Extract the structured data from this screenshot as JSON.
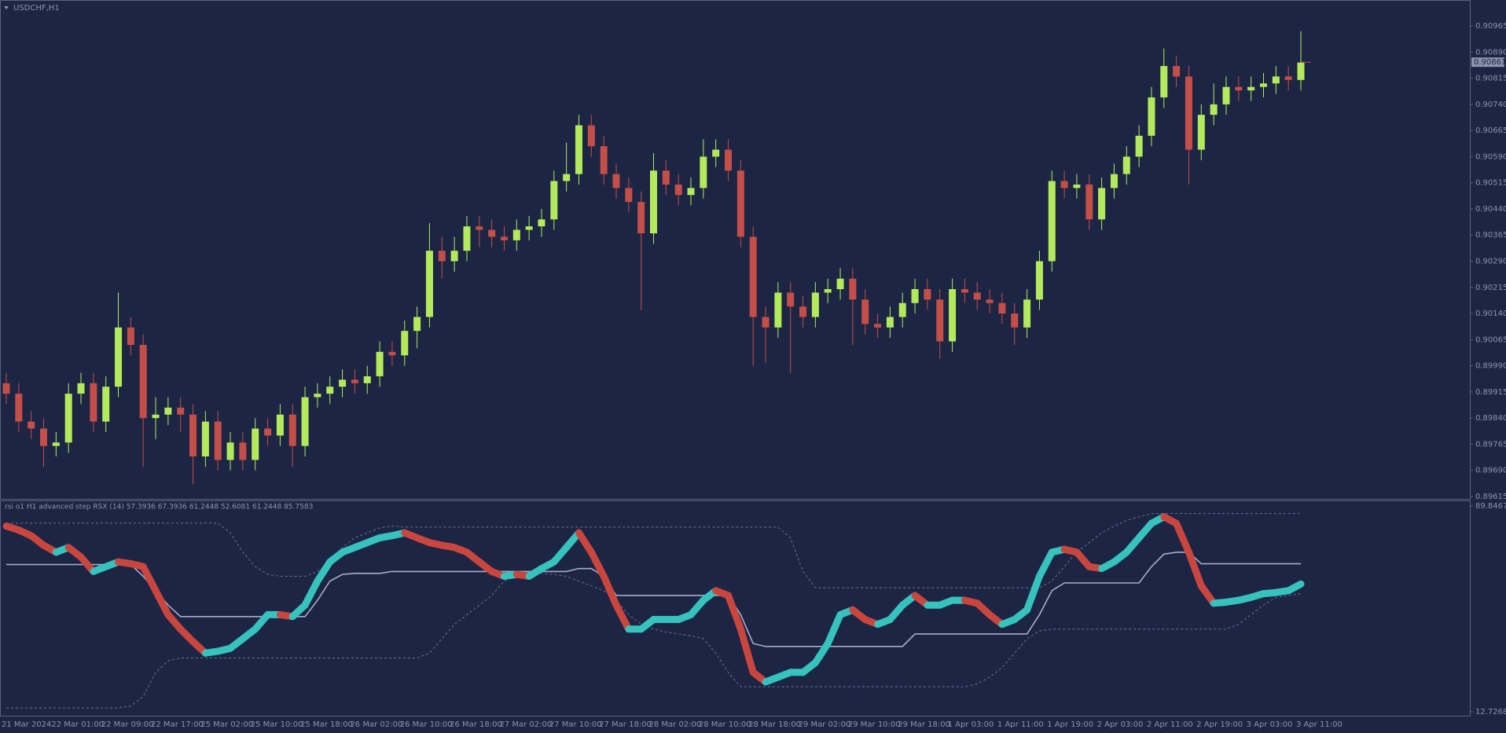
{
  "chart_data": [
    {
      "type": "candlestick",
      "title": "USDCHF,H1",
      "up_color": "#b3ea5c",
      "down_color": "#c44e48",
      "categories": [
        "21 Mar 2024",
        null,
        null,
        null,
        "22 Mar 01:00",
        null,
        null,
        null,
        "22 Mar 09:00",
        null,
        null,
        null,
        "22 Mar 17:00",
        null,
        null,
        null,
        "25 Mar 02:00",
        null,
        null,
        null,
        "25 Mar 10:00",
        null,
        null,
        null,
        "25 Mar 18:00",
        null,
        null,
        null,
        "26 Mar 02:00",
        null,
        null,
        null,
        "26 Mar 10:00",
        null,
        null,
        null,
        "26 Mar 18:00",
        null,
        null,
        null,
        "27 Mar 02:00",
        null,
        null,
        null,
        "27 Mar 10:00",
        null,
        null,
        null,
        "27 Mar 18:00",
        null,
        null,
        null,
        "28 Mar 02:00",
        null,
        null,
        null,
        "28 Mar 10:00",
        null,
        null,
        null,
        "28 Mar 18:00",
        null,
        null,
        null,
        "29 Mar 02:00",
        null,
        null,
        null,
        "29 Mar 10:00",
        null,
        null,
        null,
        "29 Mar 18:00",
        null,
        null,
        null,
        "1 Apr 03:00",
        null,
        null,
        null,
        "1 Apr 11:00",
        null,
        null,
        null,
        "1 Apr 19:00",
        null,
        null,
        null,
        "2 Apr 03:00",
        null,
        null,
        null,
        "2 Apr 11:00",
        null,
        null,
        null,
        "2 Apr 19:00",
        null,
        null,
        null,
        "3 Apr 03:00",
        null,
        null,
        null,
        "3 Apr 11:00"
      ],
      "open": [
        0.8994,
        0.8991,
        0.8983,
        0.8981,
        0.8976,
        0.8977,
        0.8991,
        0.8994,
        0.8983,
        0.8993,
        0.901,
        0.9005,
        0.8984,
        0.8985,
        0.8987,
        0.8985,
        0.8973,
        0.8983,
        0.8972,
        0.8977,
        0.8972,
        0.8981,
        0.8979,
        0.8985,
        0.8976,
        0.899,
        0.8991,
        0.8993,
        0.8995,
        0.8994,
        0.8996,
        0.9003,
        0.9002,
        0.9009,
        0.9013,
        0.9032,
        0.9029,
        0.9032,
        0.9039,
        0.9038,
        0.9036,
        0.9035,
        0.9038,
        0.9039,
        0.9041,
        0.9052,
        0.9054,
        0.9068,
        0.9062,
        0.9054,
        0.905,
        0.9046,
        0.9037,
        0.9055,
        0.9051,
        0.9048,
        0.905,
        0.9059,
        0.9061,
        0.9055,
        0.9036,
        0.9013,
        0.901,
        0.902,
        0.9016,
        0.9013,
        0.902,
        0.9021,
        0.9024,
        0.9018,
        0.9011,
        0.901,
        0.9013,
        0.9017,
        0.9021,
        0.9018,
        0.9006,
        0.9021,
        0.902,
        0.9018,
        0.9017,
        0.9014,
        0.901,
        0.9018,
        0.9029,
        0.9052,
        0.905,
        0.9051,
        0.9041,
        0.905,
        0.9054,
        0.9059,
        0.9065,
        0.9076,
        0.9085,
        0.9082,
        0.9061,
        0.9071,
        0.9074,
        0.9079,
        0.9078,
        0.9079,
        0.908,
        0.9082,
        0.9081
      ],
      "high": [
        0.8997,
        0.8994,
        0.8986,
        0.8984,
        0.898,
        0.8994,
        0.8997,
        0.8997,
        0.8996,
        0.902,
        0.9013,
        0.9008,
        0.899,
        0.899,
        0.899,
        0.8988,
        0.8986,
        0.8986,
        0.898,
        0.898,
        0.8984,
        0.8984,
        0.8988,
        0.8988,
        0.8993,
        0.8994,
        0.8996,
        0.8998,
        0.8998,
        0.8999,
        0.9006,
        0.9006,
        0.9012,
        0.9016,
        0.904,
        0.9036,
        0.9036,
        0.9042,
        0.9042,
        0.9041,
        0.9039,
        0.9041,
        0.9042,
        0.9044,
        0.9055,
        0.9063,
        0.9071,
        0.9071,
        0.9065,
        0.9057,
        0.9053,
        0.9049,
        0.906,
        0.9058,
        0.9054,
        0.9053,
        0.9064,
        0.9064,
        0.9064,
        0.9058,
        0.9039,
        0.9016,
        0.9023,
        0.9023,
        0.9019,
        0.9023,
        0.9024,
        0.9027,
        0.9027,
        0.9021,
        0.9014,
        0.9016,
        0.902,
        0.9024,
        0.9024,
        0.9021,
        0.9024,
        0.9024,
        0.9023,
        0.9021,
        0.902,
        0.9017,
        0.9021,
        0.9032,
        0.9055,
        0.9055,
        0.9054,
        0.9054,
        0.9053,
        0.9057,
        0.9062,
        0.9068,
        0.9079,
        0.909,
        0.9088,
        0.9085,
        0.9074,
        0.908,
        0.9082,
        0.9082,
        0.9082,
        0.9083,
        0.9085,
        0.9085,
        0.9095
      ],
      "low": [
        0.8988,
        0.898,
        0.8978,
        0.897,
        0.8973,
        0.8974,
        0.8988,
        0.898,
        0.898,
        0.899,
        0.9002,
        0.897,
        0.8978,
        0.8982,
        0.898,
        0.8965,
        0.897,
        0.8969,
        0.8969,
        0.8969,
        0.8969,
        0.8976,
        0.8976,
        0.897,
        0.8973,
        0.8987,
        0.8988,
        0.899,
        0.8991,
        0.8991,
        0.8993,
        0.8999,
        0.8999,
        0.9004,
        0.901,
        0.9024,
        0.9026,
        0.9029,
        0.9033,
        0.9033,
        0.9032,
        0.9032,
        0.9035,
        0.9036,
        0.9038,
        0.9049,
        0.9051,
        0.9059,
        0.9051,
        0.9047,
        0.9043,
        0.9015,
        0.9034,
        0.9048,
        0.9045,
        0.9045,
        0.9047,
        0.9056,
        0.9052,
        0.9033,
        0.8999,
        0.9,
        0.9007,
        0.8997,
        0.901,
        0.901,
        0.9017,
        0.9018,
        0.9005,
        0.9008,
        0.9007,
        0.9007,
        0.901,
        0.9014,
        0.9015,
        0.9001,
        0.9003,
        0.9017,
        0.9015,
        0.9014,
        0.9011,
        0.9005,
        0.9007,
        0.9015,
        0.9026,
        0.9047,
        0.9047,
        0.9038,
        0.9038,
        0.9047,
        0.9051,
        0.9056,
        0.9062,
        0.9073,
        0.9079,
        0.9051,
        0.9058,
        0.9068,
        0.9071,
        0.9075,
        0.9075,
        0.9076,
        0.9077,
        0.9078,
        0.9078
      ],
      "close": [
        0.8991,
        0.8983,
        0.8981,
        0.8976,
        0.8977,
        0.8991,
        0.8994,
        0.8983,
        0.8993,
        0.901,
        0.9005,
        0.8984,
        0.8985,
        0.8987,
        0.8985,
        0.8973,
        0.8983,
        0.8972,
        0.8977,
        0.8972,
        0.8981,
        0.8979,
        0.8985,
        0.8976,
        0.899,
        0.8991,
        0.8993,
        0.8995,
        0.8994,
        0.8996,
        0.9003,
        0.9002,
        0.9009,
        0.9013,
        0.9032,
        0.9029,
        0.9032,
        0.9039,
        0.9038,
        0.9036,
        0.9035,
        0.9038,
        0.9039,
        0.9041,
        0.9052,
        0.9054,
        0.9068,
        0.9062,
        0.9054,
        0.905,
        0.9046,
        0.9037,
        0.9055,
        0.9051,
        0.9048,
        0.905,
        0.9059,
        0.9061,
        0.9055,
        0.9036,
        0.9013,
        0.901,
        0.902,
        0.9016,
        0.9013,
        0.902,
        0.9021,
        0.9024,
        0.9018,
        0.9011,
        0.901,
        0.9013,
        0.9017,
        0.9021,
        0.9018,
        0.9006,
        0.9021,
        0.902,
        0.9018,
        0.9017,
        0.9014,
        0.901,
        0.9018,
        0.9029,
        0.9052,
        0.905,
        0.9051,
        0.9041,
        0.905,
        0.9054,
        0.9059,
        0.9065,
        0.9076,
        0.9085,
        0.9082,
        0.9061,
        0.9071,
        0.9074,
        0.9079,
        0.9078,
        0.9079,
        0.908,
        0.9082,
        0.9081,
        0.9086
      ],
      "last_price": 0.90861,
      "ylim": [
        0.89615,
        0.90965
      ],
      "yticks": [
        0.89615,
        {
          "value": 0.8969,
          "label": "0.89690"
        },
        0.89765,
        {
          "value": 0.8984,
          "label": "0.89840"
        },
        0.89915,
        {
          "value": 0.8999,
          "label": "0.89990"
        },
        0.90065,
        {
          "value": 0.9014,
          "label": "0.90140"
        },
        0.90215,
        {
          "value": 0.9029,
          "label": "0.90290"
        },
        0.90365,
        {
          "value": 0.9044,
          "label": "0.90440"
        },
        0.90515,
        {
          "value": 0.9059,
          "label": "0.90590"
        },
        0.90665,
        {
          "value": 0.9074,
          "label": "0.90740"
        },
        0.90815,
        {
          "value": 0.9089,
          "label": "0.90890"
        },
        0.90965
      ]
    },
    {
      "type": "line",
      "title": "rsi o1 H1 advanced step RSX (14) 57.3936 67.3936 61.2448 52.6081 61.2448 85.7583",
      "ylim": [
        12.7268,
        89.8467
      ],
      "yticks": [
        12.7268,
        89.8467
      ],
      "series": [
        {
          "style": "dotted",
          "color": "#6a7394",
          "values": [
            83.4,
            83.4,
            83.4,
            83.4,
            83.4,
            83.4,
            83.4,
            83.4,
            83.4,
            83.4,
            83.4,
            83.4,
            83.4,
            83.4,
            83.4,
            83.4,
            83.4,
            83.4,
            79.8,
            72.5,
            67.1,
            64.2,
            63.5,
            63.5,
            63.5,
            65.3,
            68.9,
            74.3,
            77.9,
            79.8,
            81.6,
            82.3,
            81.9,
            81.9,
            81.9,
            81.9,
            81.9,
            81.9,
            81.9,
            81.9,
            81.9,
            81.9,
            81.9,
            81.9,
            81.9,
            81.9,
            81.9,
            81.9,
            81.9,
            81.9,
            81.9,
            81.9,
            81.9,
            81.9,
            81.9,
            81.9,
            81.9,
            81.9,
            81.9,
            81.9,
            81.9,
            81.9,
            81.9,
            77.9,
            65.3,
            59.2,
            59.2,
            59.2,
            59.2,
            59.2,
            59.2,
            59.2,
            59.2,
            59.2,
            59.2,
            59.2,
            59.2,
            59.2,
            59.2,
            59.2,
            59.2,
            59.2,
            59.2,
            59.2,
            61.7,
            67.1,
            72.5,
            76.1,
            79.8,
            82.3,
            84.4,
            85.8,
            87.0,
            87.0,
            87.0,
            87.0,
            87.0,
            87.0,
            87.0,
            87.0,
            87.0,
            87.0,
            87.0,
            87.0,
            87.0
          ]
        },
        {
          "style": "dotted",
          "color": "#6a7394",
          "values": [
            14.2,
            14.2,
            14.2,
            14.2,
            14.2,
            14.2,
            14.2,
            14.2,
            14.2,
            14.2,
            14.9,
            18.5,
            27.5,
            31.8,
            32.9,
            32.9,
            32.9,
            32.9,
            32.9,
            32.9,
            32.9,
            32.9,
            32.9,
            32.9,
            32.9,
            32.9,
            32.9,
            32.9,
            32.9,
            32.9,
            32.9,
            32.9,
            32.9,
            32.9,
            34.7,
            40.1,
            45.5,
            49.1,
            52.7,
            56.3,
            61.7,
            64.2,
            65.0,
            64.6,
            64.2,
            63.5,
            61.7,
            59.9,
            58.1,
            54.5,
            49.1,
            45.5,
            43.7,
            42.6,
            41.9,
            41.2,
            40.1,
            34.7,
            27.5,
            22.1,
            22.1,
            22.1,
            22.1,
            22.1,
            22.1,
            22.1,
            22.1,
            22.1,
            22.1,
            22.1,
            22.1,
            22.1,
            22.1,
            22.1,
            22.1,
            22.1,
            22.1,
            22.1,
            23.2,
            25.7,
            29.3,
            34.7,
            40.1,
            43.0,
            43.7,
            43.7,
            43.7,
            43.7,
            43.7,
            43.7,
            43.7,
            43.7,
            43.7,
            43.7,
            43.7,
            43.7,
            43.7,
            43.7,
            43.7,
            45.5,
            49.1,
            52.7,
            55.6,
            56.3,
            57.0
          ]
        },
        {
          "style": "solid",
          "color": "#a7adc9",
          "values": [
            67.9,
            67.9,
            67.9,
            67.9,
            67.9,
            67.9,
            67.9,
            67.9,
            67.9,
            67.9,
            67.9,
            63.5,
            58.1,
            52.7,
            48.4,
            48.4,
            48.4,
            48.4,
            48.4,
            48.4,
            48.4,
            48.4,
            48.4,
            48.4,
            48.4,
            54.5,
            61.7,
            64.2,
            64.6,
            64.6,
            64.6,
            65.3,
            65.3,
            65.3,
            65.3,
            65.3,
            65.3,
            65.3,
            65.3,
            65.3,
            65.3,
            65.3,
            65.3,
            65.3,
            65.3,
            65.3,
            66.4,
            66.4,
            63.5,
            56.3,
            56.3,
            56.3,
            56.3,
            56.3,
            56.3,
            56.3,
            56.3,
            56.3,
            56.3,
            49.1,
            38.3,
            37.2,
            37.2,
            37.2,
            37.2,
            37.2,
            37.2,
            37.2,
            37.2,
            37.2,
            37.2,
            37.2,
            37.2,
            41.9,
            41.9,
            41.9,
            41.9,
            41.9,
            41.9,
            41.9,
            41.9,
            41.9,
            41.9,
            49.1,
            58.1,
            61.0,
            61.0,
            61.0,
            61.0,
            61.0,
            61.0,
            61.0,
            67.1,
            71.8,
            72.5,
            72.5,
            68.2,
            68.2,
            68.2,
            68.2,
            68.2,
            68.2,
            68.2,
            68.2,
            68.2
          ]
        },
        {
          "style": "band",
          "colors": [
            "#36c2bd",
            "#c9463f"
          ],
          "values": [
            82.3,
            80.8,
            78.7,
            75.1,
            72.5,
            74.3,
            70.7,
            65.3,
            67.1,
            68.9,
            68.2,
            67.1,
            58.1,
            49.1,
            43.7,
            39.0,
            34.7,
            35.4,
            36.5,
            40.1,
            43.7,
            49.1,
            49.1,
            48.4,
            52.7,
            61.7,
            68.9,
            72.5,
            74.3,
            76.1,
            77.9,
            78.7,
            79.8,
            77.9,
            76.1,
            75.1,
            74.3,
            72.5,
            68.9,
            65.3,
            63.5,
            64.2,
            63.5,
            66.4,
            68.9,
            74.3,
            79.8,
            72.5,
            63.5,
            52.7,
            43.7,
            43.7,
            47.3,
            47.3,
            47.3,
            49.1,
            54.5,
            58.1,
            56.3,
            43.7,
            27.5,
            23.9,
            25.7,
            27.5,
            27.5,
            31.1,
            38.3,
            49.1,
            50.9,
            47.3,
            45.5,
            47.3,
            52.7,
            56.3,
            52.7,
            52.7,
            54.5,
            54.5,
            53.4,
            49.1,
            45.5,
            47.3,
            50.9,
            63.5,
            72.5,
            73.6,
            72.5,
            67.1,
            66.4,
            68.9,
            72.5,
            77.9,
            83.3,
            85.8,
            83.3,
            72.5,
            59.9,
            53.4,
            53.8,
            54.5,
            55.6,
            57.0,
            57.4,
            58.1,
            60.6
          ]
        }
      ]
    }
  ]
}
